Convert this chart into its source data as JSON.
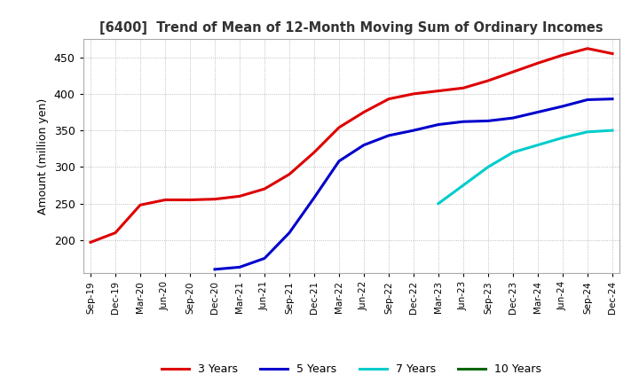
{
  "title": "[6400]  Trend of Mean of 12-Month Moving Sum of Ordinary Incomes",
  "ylabel": "Amount (million yen)",
  "ylim": [
    155,
    475
  ],
  "yticks": [
    200,
    250,
    300,
    350,
    400,
    450
  ],
  "background_color": "#ffffff",
  "plot_bg_color": "#ffffff",
  "grid_color": "#aaaaaa",
  "line_3y_color": "#dd0000",
  "line_5y_color": "#0000cc",
  "line_7y_color": "#00cccc",
  "line_10y_color": "#006600",
  "legend_labels": [
    "3 Years",
    "5 Years",
    "7 Years",
    "10 Years"
  ],
  "x_labels": [
    "Sep-19",
    "Dec-19",
    "Mar-20",
    "Jun-20",
    "Sep-20",
    "Dec-20",
    "Mar-21",
    "Jun-21",
    "Sep-21",
    "Dec-21",
    "Mar-22",
    "Jun-22",
    "Sep-22",
    "Dec-22",
    "Mar-23",
    "Jun-23",
    "Sep-23",
    "Dec-23",
    "Mar-24",
    "Jun-24",
    "Sep-24",
    "Dec-24"
  ],
  "y_3years": [
    197,
    210,
    248,
    255,
    255,
    256,
    260,
    270,
    290,
    320,
    354,
    375,
    393,
    400,
    404,
    408,
    418,
    430,
    442,
    453,
    462,
    455
  ],
  "y_5years": [
    null,
    null,
    null,
    null,
    null,
    160,
    163,
    175,
    210,
    258,
    308,
    330,
    343,
    350,
    358,
    362,
    363,
    367,
    375,
    383,
    392,
    393
  ],
  "y_7years": [
    null,
    null,
    null,
    null,
    null,
    null,
    null,
    null,
    null,
    null,
    null,
    null,
    null,
    null,
    250,
    275,
    300,
    320,
    330,
    340,
    348,
    350
  ],
  "y_10years": []
}
